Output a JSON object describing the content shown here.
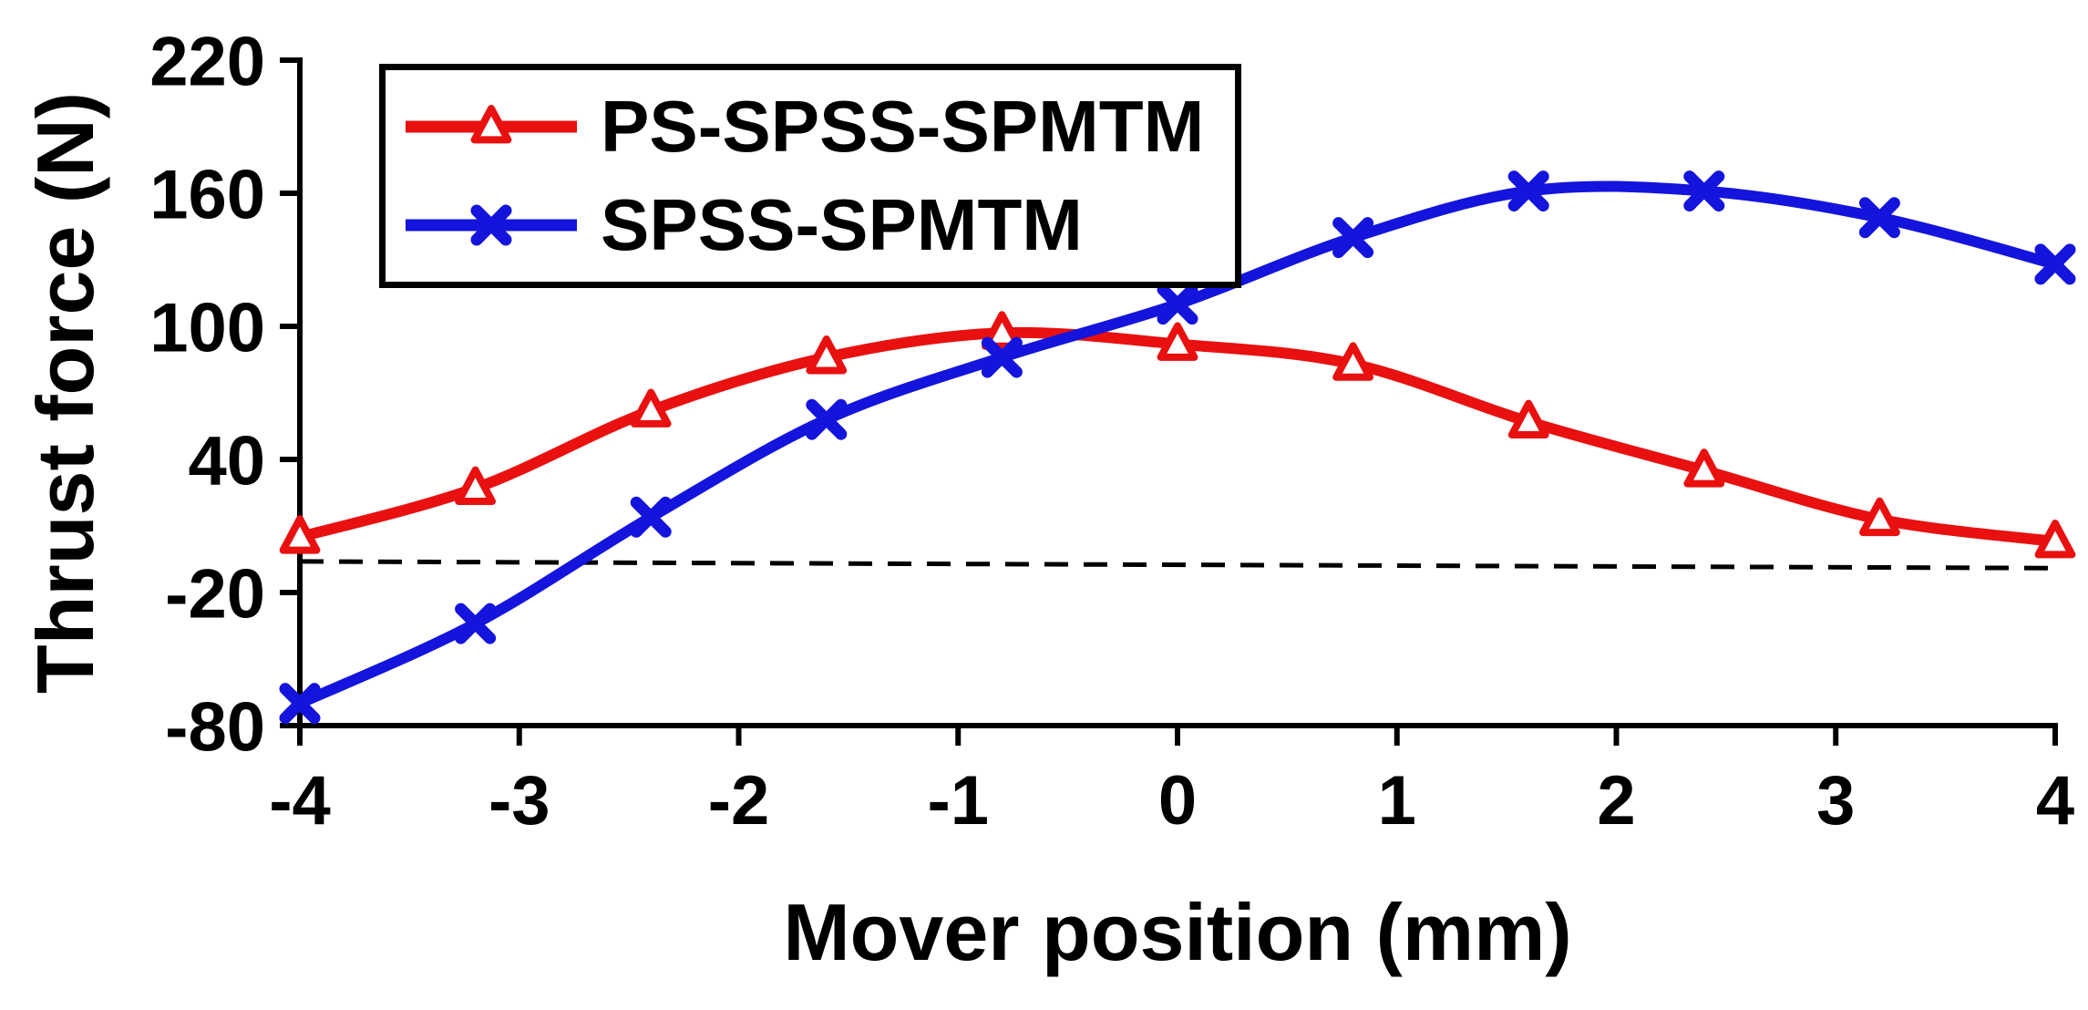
{
  "chart_data": {
    "type": "line",
    "title": "",
    "xlabel": "Mover position (mm)",
    "ylabel": "Thrust force (N)",
    "xlim": [
      -4,
      4
    ],
    "ylim": [
      -80,
      220
    ],
    "xticks": [
      -4,
      -3,
      -2,
      -1,
      0,
      1,
      2,
      3,
      4
    ],
    "yticks": [
      -80,
      -20,
      40,
      100,
      160,
      220
    ],
    "grid": false,
    "legend_position": "top-left",
    "x": [
      -4,
      -3.2,
      -2.4,
      -1.6,
      -0.8,
      0,
      0.8,
      1.6,
      2.4,
      3.2,
      4
    ],
    "series": [
      {
        "name": "PS-SPSS-SPMTM",
        "color": "#e91010",
        "marker": "triangle",
        "values": [
          5,
          27,
          62,
          86,
          97,
          92,
          83,
          57,
          35,
          13,
          3
        ]
      },
      {
        "name": "SPSS-SPMTM",
        "color": "#1414dd",
        "marker": "x",
        "values": [
          -70,
          -34,
          14,
          58,
          86,
          110,
          140,
          161,
          161,
          149,
          128
        ]
      }
    ],
    "dashed_line": {
      "name": "zero-reference-dashed-line",
      "color": "#000000",
      "x": [
        -4,
        4
      ],
      "values": [
        -6,
        -9
      ]
    }
  }
}
